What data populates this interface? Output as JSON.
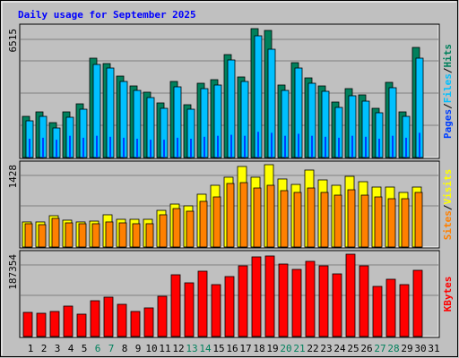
{
  "chart_data": [
    {
      "type": "bar",
      "title": "Daily usage for September 2025",
      "categories": [
        "1",
        "2",
        "3",
        "4",
        "5",
        "6",
        "7",
        "8",
        "9",
        "10",
        "11",
        "12",
        "13",
        "14",
        "15",
        "16",
        "17",
        "18",
        "19",
        "20",
        "21",
        "22",
        "23",
        "24",
        "25",
        "26",
        "27",
        "28",
        "29",
        "30",
        "31"
      ],
      "weekend_indices": [
        5,
        6,
        12,
        13,
        19,
        20,
        26,
        27
      ],
      "weekend_color": "#00805c",
      "weekday_color": "#000000",
      "separator": "/",
      "ylim": [
        0,
        6515
      ],
      "yticks": [
        6515
      ],
      "grid": 4,
      "series": [
        {
          "name": "Hits",
          "color": "#00805c",
          "values": [
            2081,
            2307,
            1764,
            2307,
            2714,
            5022,
            4750,
            4117,
            3619,
            3303,
            2760,
            3845,
            2669,
            3755,
            3936,
            5203,
            4072,
            6515,
            6424,
            3665,
            4795,
            4026,
            3619,
            2805,
            3483,
            3167,
            2488,
            3800,
            2307,
            5565,
            null
          ]
        },
        {
          "name": "Files",
          "color": "#00c0ff",
          "values": [
            1855,
            2081,
            1493,
            2036,
            2443,
            4705,
            4524,
            3845,
            3393,
            3031,
            2488,
            3574,
            2443,
            3483,
            3665,
            4931,
            3845,
            6153,
            5474,
            3393,
            4524,
            3755,
            3348,
            2533,
            3122,
            2850,
            2262,
            3529,
            2081,
            5022,
            null
          ]
        },
        {
          "name": "Pages",
          "color": "#0040ff",
          "values": [
            950,
            1000,
            900,
            1100,
            1000,
            1100,
            1050,
            1000,
            950,
            900,
            900,
            1000,
            950,
            1050,
            1100,
            1150,
            1100,
            1300,
            1250,
            1100,
            1200,
            1100,
            1050,
            1000,
            1100,
            1050,
            950,
            1100,
            1000,
            1250,
            null
          ]
        }
      ]
    },
    {
      "type": "bar",
      "ylim": [
        0,
        1428
      ],
      "yticks": [
        1428
      ],
      "grid": 2,
      "series": [
        {
          "name": "Visits",
          "color": "#ffff00",
          "values": [
            435,
            435,
            543,
            466,
            435,
            450,
            559,
            481,
            481,
            481,
            636,
            745,
            714,
            916,
            1071,
            1211,
            1397,
            1211,
            1428,
            1180,
            1086,
            1335,
            1164,
            1071,
            1226,
            1133,
            1040,
            1040,
            947,
            1040,
            null
          ]
        },
        {
          "name": "Sites",
          "color": "#ff8000",
          "values": [
            404,
            388,
            497,
            419,
            404,
            404,
            435,
            419,
            404,
            404,
            559,
            667,
            621,
            792,
            869,
            1102,
            1117,
            1024,
            1071,
            978,
            947,
            1024,
            947,
            900,
            993,
            900,
            869,
            838,
            838,
            947,
            null
          ]
        }
      ]
    },
    {
      "type": "bar",
      "ylim": [
        0,
        187354
      ],
      "yticks": [
        187354
      ],
      "grid": 2,
      "series": [
        {
          "name": "KBytes",
          "color": "#ff0000",
          "values": [
            54986,
            52949,
            57022,
            69241,
            50913,
            81460,
            89606,
            73314,
            57022,
            65168,
            91643,
            140519,
            122190,
            148665,
            118117,
            136446,
            160884,
            181249,
            183285,
            164957,
            152738,
            171066,
            160884,
            142555,
            187354,
            160884,
            114044,
            130336,
            118117,
            150701,
            null
          ]
        }
      ]
    }
  ]
}
